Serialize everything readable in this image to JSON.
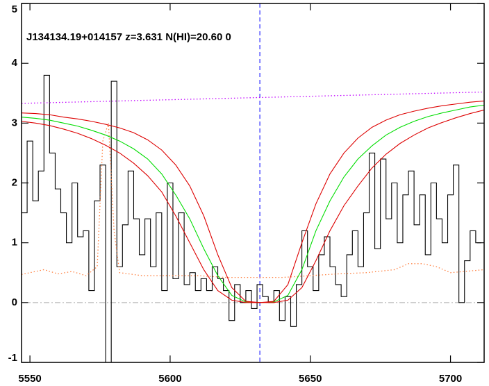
{
  "chart_data": {
    "type": "line",
    "title": "J134134.19+014157 z=3.631 N(HI)=20.60 0",
    "xlim": [
      5547,
      5712
    ],
    "ylim": [
      -1,
      5
    ],
    "xticks": [
      5550,
      5600,
      5650,
      5700
    ],
    "yticks": [
      -1,
      0,
      1,
      2,
      3,
      4,
      5
    ],
    "reference_lines": [
      {
        "axis": "x",
        "value": 5632,
        "color": "#0000ff",
        "style": "dashed"
      },
      {
        "axis": "y",
        "value": 0,
        "color": "#aaaaaa",
        "style": "dashdot"
      }
    ],
    "series": [
      {
        "color": "#000000",
        "style": "steps",
        "x": [
          5548,
          5550,
          5552,
          5554,
          5556,
          5558,
          5560,
          5562,
          5564,
          5566,
          5568,
          5570,
          5572,
          5574,
          5576,
          5578,
          5580,
          5582,
          5584,
          5586,
          5588,
          5590,
          5592,
          5594,
          5596,
          5598,
          5600,
          5602,
          5604,
          5606,
          5608,
          5610,
          5612,
          5614,
          5616,
          5618,
          5620,
          5622,
          5624,
          5626,
          5628,
          5630,
          5632,
          5634,
          5636,
          5638,
          5640,
          5642,
          5644,
          5646,
          5648,
          5650,
          5652,
          5654,
          5656,
          5658,
          5660,
          5662,
          5664,
          5666,
          5668,
          5670,
          5672,
          5674,
          5676,
          5678,
          5680,
          5682,
          5684,
          5686,
          5688,
          5690,
          5692,
          5694,
          5696,
          5698,
          5700,
          5702,
          5704,
          5706,
          5708,
          5710
        ],
        "values": [
          1.5,
          2.7,
          1.7,
          2.2,
          3.8,
          2.5,
          1.9,
          1.5,
          1.0,
          2.0,
          1.1,
          1.2,
          0.2,
          1.7,
          2.3,
          -1.2,
          3.7,
          0.6,
          1.3,
          2.2,
          1.4,
          0.8,
          1.4,
          0.6,
          1.5,
          0.2,
          2.0,
          0.4,
          1.5,
          0.3,
          0.5,
          0.2,
          0.4,
          0.2,
          0.6,
          0.4,
          0.2,
          -0.3,
          0.3,
          0.0,
          0.2,
          -0.1,
          0.3,
          0.1,
          0.0,
          0.2,
          -0.3,
          0.1,
          -0.4,
          0.3,
          1.2,
          0.6,
          0.2,
          0.8,
          1.1,
          0.6,
          0.3,
          0.1,
          0.8,
          1.2,
          0.6,
          1.5,
          2.5,
          0.9,
          2.4,
          1.4,
          2.0,
          1.0,
          1.8,
          2.2,
          1.3,
          1.8,
          0.8,
          2.0,
          1.4,
          1.0,
          1.8,
          2.3,
          0.0,
          0.7,
          1.2,
          1.0
        ]
      },
      {
        "color": "#ff8040",
        "style": "dotted",
        "x": [
          5547,
          5555,
          5560,
          5565,
          5570,
          5574,
          5576,
          5578,
          5580,
          5582,
          5590,
          5600,
          5610,
          5620,
          5630,
          5640,
          5650,
          5660,
          5670,
          5680,
          5685,
          5690,
          5695,
          5700,
          5705,
          5712
        ],
        "values": [
          0.47,
          0.55,
          0.48,
          0.52,
          0.45,
          0.6,
          2.7,
          3.0,
          1.2,
          0.5,
          0.45,
          0.45,
          0.45,
          0.42,
          0.42,
          0.42,
          0.45,
          0.48,
          0.5,
          0.55,
          0.65,
          0.65,
          0.6,
          0.5,
          0.52,
          0.55
        ]
      },
      {
        "color": "#c000ff",
        "style": "dotted",
        "x": [
          5547,
          5712
        ],
        "values": [
          3.33,
          3.52
        ]
      },
      {
        "color": "#00dd00",
        "style": "solid",
        "x": [
          5547,
          5552,
          5557,
          5562,
          5567,
          5572,
          5577,
          5582,
          5587,
          5592,
          5597,
          5602,
          5607,
          5612,
          5617,
          5622,
          5627,
          5632,
          5637,
          5642,
          5647,
          5652,
          5657,
          5662,
          5667,
          5672,
          5677,
          5682,
          5687,
          5692,
          5697,
          5702,
          5707,
          5712
        ],
        "values": [
          3.1,
          3.08,
          3.05,
          3.0,
          2.95,
          2.88,
          2.8,
          2.7,
          2.57,
          2.4,
          2.15,
          1.8,
          1.4,
          0.9,
          0.45,
          0.12,
          0.01,
          0.0,
          0.01,
          0.12,
          0.55,
          1.2,
          1.7,
          2.1,
          2.4,
          2.62,
          2.8,
          2.93,
          3.03,
          3.11,
          3.17,
          3.22,
          3.27,
          3.3
        ]
      },
      {
        "color": "#dd0000",
        "style": "solid",
        "x": [
          5547,
          5552,
          5557,
          5562,
          5567,
          5572,
          5577,
          5582,
          5587,
          5592,
          5597,
          5602,
          5607,
          5612,
          5617,
          5622,
          5627,
          5632,
          5637,
          5642,
          5647,
          5652,
          5657,
          5662,
          5667,
          5672,
          5677,
          5682,
          5687,
          5692,
          5697,
          5702,
          5707,
          5712
        ],
        "values": [
          3.17,
          3.16,
          3.14,
          3.1,
          3.07,
          3.03,
          2.98,
          2.92,
          2.84,
          2.72,
          2.55,
          2.3,
          1.95,
          1.45,
          0.8,
          0.25,
          0.02,
          0,
          0.02,
          0.3,
          1.0,
          1.65,
          2.15,
          2.5,
          2.75,
          2.93,
          3.05,
          3.14,
          3.2,
          3.25,
          3.29,
          3.32,
          3.35,
          3.37
        ]
      },
      {
        "color": "#dd0000",
        "style": "solid",
        "x": [
          5547,
          5552,
          5557,
          5562,
          5567,
          5572,
          5577,
          5582,
          5587,
          5592,
          5597,
          5602,
          5607,
          5612,
          5617,
          5622,
          5627,
          5632,
          5637,
          5642,
          5647,
          5652,
          5657,
          5662,
          5667,
          5672,
          5677,
          5682,
          5687,
          5692,
          5697,
          5702,
          5707,
          5712
        ],
        "values": [
          3.03,
          3.0,
          2.96,
          2.9,
          2.83,
          2.74,
          2.63,
          2.5,
          2.33,
          2.12,
          1.85,
          1.45,
          1.0,
          0.55,
          0.2,
          0.04,
          0,
          0,
          0,
          0.04,
          0.25,
          0.7,
          1.2,
          1.62,
          1.95,
          2.25,
          2.48,
          2.66,
          2.8,
          2.92,
          3.01,
          3.09,
          3.16,
          3.22
        ]
      }
    ]
  }
}
